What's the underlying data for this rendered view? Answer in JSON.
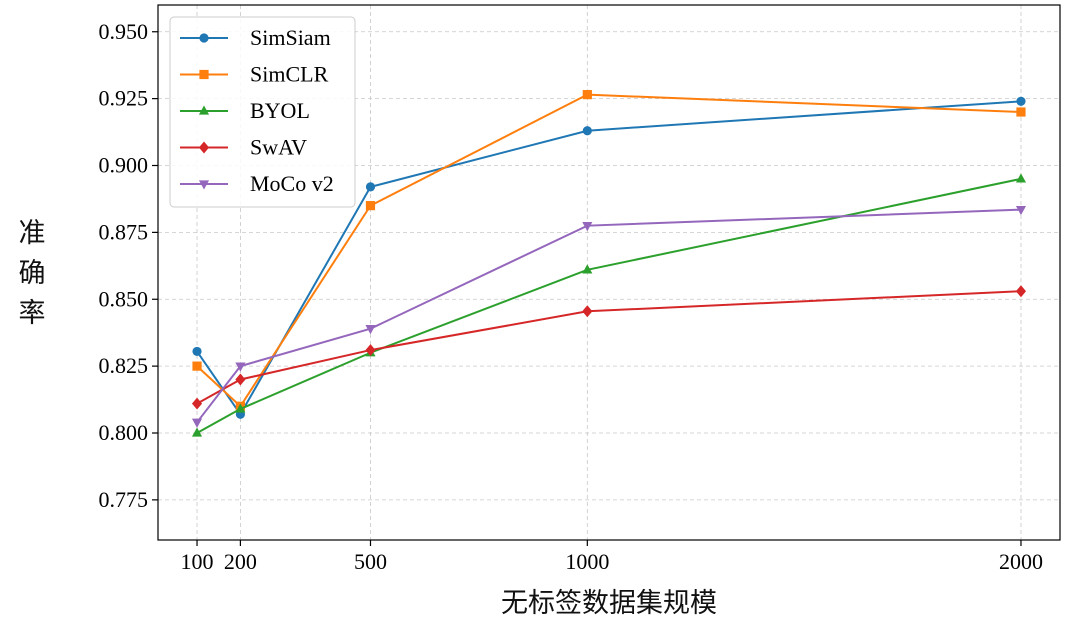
{
  "chart_data": {
    "type": "line",
    "title": "",
    "xlabel": "无标签数据集规模",
    "ylabel": "准确率",
    "x": [
      100,
      200,
      500,
      1000,
      2000
    ],
    "xticks": [
      "100",
      "200",
      "500",
      "1000",
      "2000"
    ],
    "xlim": [
      10,
      2090
    ],
    "ylim": [
      0.76,
      0.96
    ],
    "yticks": [
      "0.775",
      "0.800",
      "0.825",
      "0.850",
      "0.875",
      "0.900",
      "0.925",
      "0.950"
    ],
    "grid": true,
    "legend_position": "top-left",
    "series": [
      {
        "name": "SimSiam",
        "color": "#1f77b4",
        "marker": "circle",
        "values": [
          0.8305,
          0.807,
          0.892,
          0.913,
          0.924
        ]
      },
      {
        "name": "SimCLR",
        "color": "#ff7f0e",
        "marker": "square",
        "values": [
          0.825,
          0.81,
          0.885,
          0.9265,
          0.92
        ]
      },
      {
        "name": "BYOL",
        "color": "#2ca02c",
        "marker": "triangle-up",
        "values": [
          0.8,
          0.809,
          0.83,
          0.861,
          0.895
        ]
      },
      {
        "name": "SwAV",
        "color": "#d62728",
        "marker": "diamond",
        "values": [
          0.811,
          0.82,
          0.831,
          0.8455,
          0.853
        ]
      },
      {
        "name": "MoCo v2",
        "color": "#9467bd",
        "marker": "triangle-down",
        "values": [
          0.804,
          0.825,
          0.839,
          0.8775,
          0.8835
        ]
      }
    ]
  }
}
